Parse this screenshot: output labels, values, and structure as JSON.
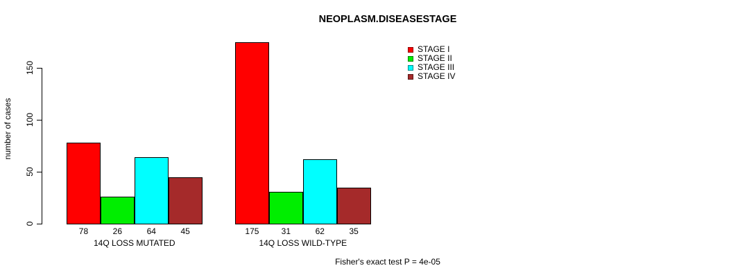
{
  "chart_data": {
    "type": "bar",
    "title": "NEOPLASM.DISEASESTAGE",
    "ylabel": "number of cases",
    "xlabel": "",
    "categories": [
      "14Q LOSS MUTATED",
      "14Q LOSS WILD-TYPE"
    ],
    "series": [
      {
        "name": "STAGE I",
        "color": "#FF0000",
        "values": [
          78,
          175
        ]
      },
      {
        "name": "STAGE II",
        "color": "#00EE00",
        "values": [
          26,
          31
        ]
      },
      {
        "name": "STAGE III",
        "color": "#00FFFF",
        "values": [
          64,
          62
        ]
      },
      {
        "name": "STAGE IV",
        "color": "#A52A2A",
        "values": [
          45,
          35
        ]
      }
    ],
    "yticks": [
      0,
      50,
      100,
      150
    ],
    "ylim": [
      0,
      175
    ],
    "axis_tick_range": [
      0,
      150
    ],
    "grid": false,
    "legend_position": "top-right",
    "bar_border_color": "#000000",
    "background_color": "#FFFFFF",
    "annotation": "Fisher's exact test P = 4e-05"
  }
}
